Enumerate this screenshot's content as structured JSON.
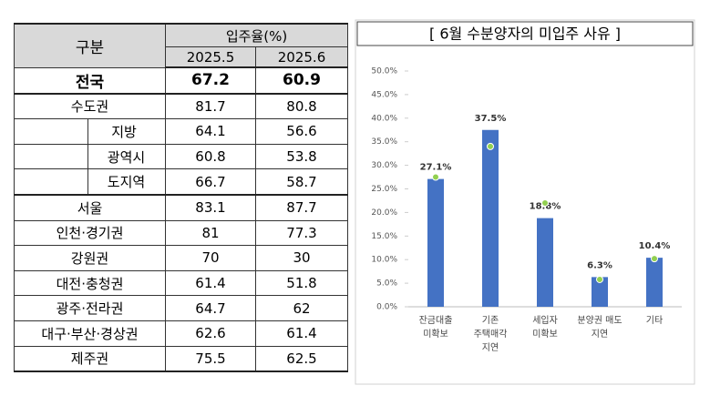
{
  "table": {
    "header": {
      "group": "구분",
      "rate": "입주율(%)",
      "months": [
        "2025.5",
        "2025.6"
      ]
    },
    "rows": [
      [
        "전국",
        67.2,
        60.9
      ],
      [
        "수도권",
        81.7,
        80.8
      ],
      [
        "지방",
        64.1,
        56.6
      ],
      [
        "광역시",
        60.8,
        53.8
      ],
      [
        "도지역",
        66.7,
        58.7
      ],
      [
        "서울",
        83.1,
        87.7
      ],
      [
        "인천·경기권",
        81.0,
        77.3
      ],
      [
        "강원권",
        70.0,
        30.0
      ],
      [
        "대전·충청권",
        61.4,
        51.8
      ],
      [
        "광주·전라권",
        64.7,
        62.0
      ],
      [
        "대구·부산·경상권",
        62.6,
        61.4
      ],
      [
        "제주권",
        75.5,
        62.5
      ]
    ]
  },
  "chart_data": {
    "type": "bar",
    "title": "[ 6월 수분양자의 미입주 사유 ]",
    "categories": [
      "잔금대출\n미확보",
      "기존\n주택매각\n지연",
      "세입자\n미확보",
      "분양권 매도\n지연",
      "기타"
    ],
    "series": [
      {
        "color": "#4472c4",
        "values": [
          27.1,
          37.5,
          18.8,
          6.3,
          10.4
        ],
        "value_labels": [
          "27.1%",
          "37.5%",
          "18.8%",
          "6.3%",
          "10.4%"
        ]
      },
      {
        "color": "#92d050",
        "values": [
          27.5,
          34.0,
          22.0,
          5.8,
          10.2
        ]
      }
    ],
    "ylim": [
      0,
      50
    ],
    "yticks": [
      {
        "value": 0,
        "label": "0.0%"
      },
      {
        "value": 5,
        "label": "5.0%"
      },
      {
        "value": 10,
        "label": "10.0%"
      },
      {
        "value": 15,
        "label": "15.0%"
      },
      {
        "value": 20,
        "label": "20.0%"
      },
      {
        "value": 25,
        "label": "25.0%"
      },
      {
        "value": 30,
        "label": "30.0%"
      },
      {
        "value": 35,
        "label": "35.0%"
      },
      {
        "value": 40,
        "label": "40.0%"
      },
      {
        "value": 45,
        "label": "45.0%"
      },
      {
        "value": 50,
        "label": "50.0%"
      }
    ]
  }
}
